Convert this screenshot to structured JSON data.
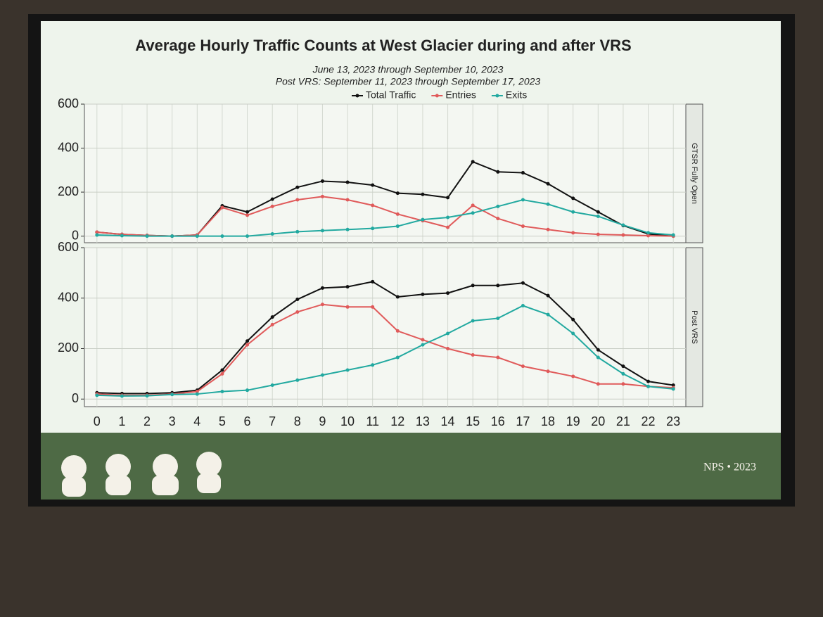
{
  "chart_data": [
    {
      "type": "line",
      "title": "Average Hourly Traffic Counts at West Glacier during and after VRS",
      "subtitle": [
        "June 13, 2023 through September 10, 2023",
        "Post VRS: September 11, 2023 through September 17, 2023"
      ],
      "panel": "GTSR Fully Open",
      "x": [
        0,
        1,
        2,
        3,
        4,
        5,
        6,
        7,
        8,
        9,
        10,
        11,
        12,
        13,
        14,
        15,
        16,
        17,
        18,
        19,
        20,
        21,
        22,
        23
      ],
      "xlim": [
        -0.5,
        23.5
      ],
      "xticks": [
        0,
        1,
        2,
        3,
        4,
        5,
        6,
        7,
        8,
        9,
        10,
        11,
        12,
        13,
        14,
        15,
        16,
        17,
        18,
        19,
        20,
        21,
        22,
        23
      ],
      "ylim": [
        -30,
        600
      ],
      "yticks": [
        0,
        200,
        400,
        600
      ],
      "grid": true,
      "series": [
        {
          "name": "Total Traffic",
          "color": "#111111",
          "values": [
            18,
            8,
            3,
            0,
            5,
            138,
            110,
            168,
            222,
            250,
            245,
            232,
            195,
            190,
            175,
            338,
            292,
            288,
            238,
            172,
            110,
            48,
            10,
            0
          ]
        },
        {
          "name": "Entries",
          "color": "#e05a5a",
          "values": [
            18,
            8,
            3,
            0,
            5,
            130,
            95,
            135,
            165,
            180,
            165,
            140,
            100,
            70,
            40,
            140,
            80,
            45,
            30,
            15,
            8,
            5,
            2,
            0
          ]
        },
        {
          "name": "Exits",
          "color": "#22a9a0",
          "values": [
            5,
            2,
            0,
            0,
            0,
            0,
            0,
            10,
            20,
            25,
            30,
            35,
            45,
            75,
            85,
            105,
            135,
            165,
            145,
            110,
            90,
            50,
            15,
            5
          ]
        }
      ]
    },
    {
      "type": "line",
      "panel": "Post VRS",
      "x": [
        0,
        1,
        2,
        3,
        4,
        5,
        6,
        7,
        8,
        9,
        10,
        11,
        12,
        13,
        14,
        15,
        16,
        17,
        18,
        19,
        20,
        21,
        22,
        23
      ],
      "xlim": [
        -0.5,
        23.5
      ],
      "xticks": [
        0,
        1,
        2,
        3,
        4,
        5,
        6,
        7,
        8,
        9,
        10,
        11,
        12,
        13,
        14,
        15,
        16,
        17,
        18,
        19,
        20,
        21,
        22,
        23
      ],
      "ylim": [
        -30,
        600
      ],
      "yticks": [
        0,
        200,
        400,
        600
      ],
      "grid": true,
      "series": [
        {
          "name": "Total Traffic",
          "color": "#111111",
          "values": [
            25,
            22,
            22,
            25,
            35,
            115,
            230,
            325,
            395,
            440,
            445,
            465,
            405,
            415,
            420,
            450,
            450,
            460,
            410,
            315,
            195,
            130,
            70,
            55
          ]
        },
        {
          "name": "Entries",
          "color": "#e05a5a",
          "values": [
            20,
            15,
            15,
            20,
            30,
            100,
            215,
            295,
            345,
            375,
            365,
            365,
            270,
            235,
            200,
            175,
            165,
            130,
            110,
            90,
            60,
            60,
            50,
            45
          ]
        },
        {
          "name": "Exits",
          "color": "#22a9a0",
          "values": [
            15,
            12,
            13,
            18,
            20,
            30,
            35,
            55,
            75,
            95,
            115,
            135,
            165,
            215,
            260,
            310,
            320,
            370,
            335,
            260,
            165,
            100,
            50,
            40
          ]
        }
      ]
    }
  ],
  "footer": "NPS • 2023"
}
